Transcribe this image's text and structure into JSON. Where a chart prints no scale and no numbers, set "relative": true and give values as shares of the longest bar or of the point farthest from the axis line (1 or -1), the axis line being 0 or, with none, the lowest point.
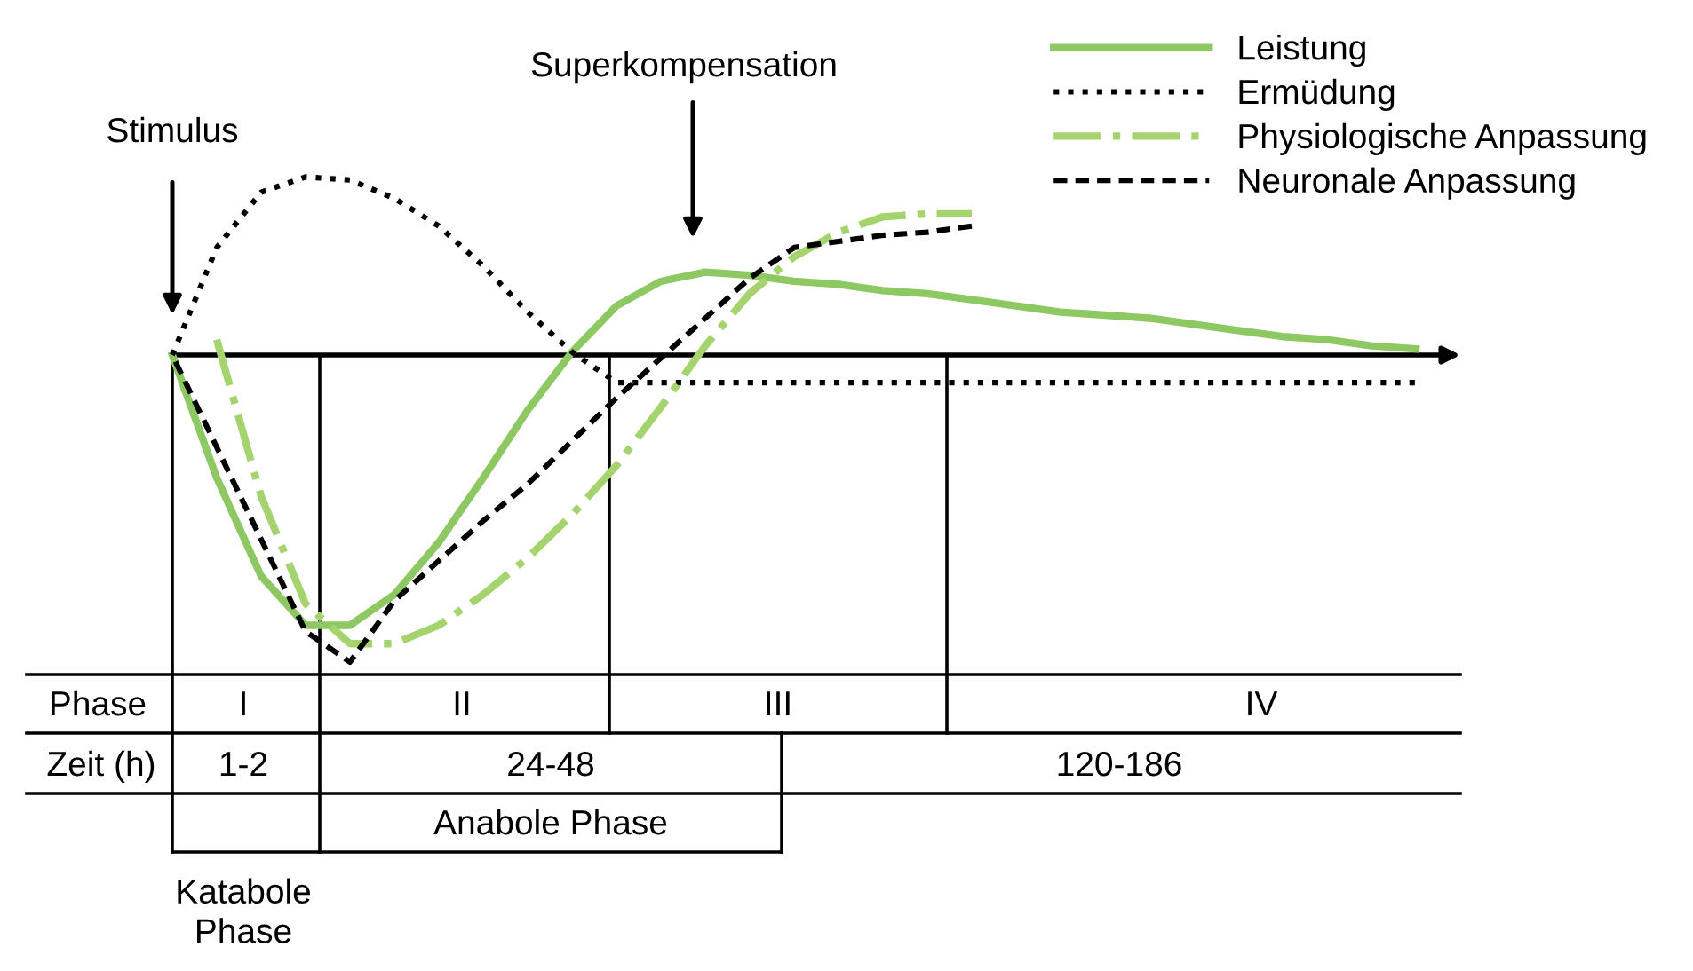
{
  "chart_data": {
    "type": "line",
    "relative": true,
    "legend": "top right",
    "marker": "none",
    "categories": [
      null,
      null,
      null,
      null,
      null,
      null,
      null,
      null,
      null,
      null,
      null,
      null,
      null,
      null,
      null,
      null,
      null,
      null,
      null,
      null,
      null,
      null,
      null,
      null,
      null,
      null,
      null,
      null,
      null
    ],
    "series": [
      {
        "name": "Leistung",
        "color": "#8dc863",
        "line_style": "solid",
        "values": [
          0,
          -0.4,
          -0.72,
          -0.88,
          -0.88,
          -0.78,
          -0.61,
          -0.4,
          -0.18,
          0.01,
          0.16,
          0.24,
          0.27,
          0.26,
          0.24,
          0.23,
          0.21,
          0.2,
          0.18,
          0.16,
          0.14,
          0.13,
          0.12,
          0.1,
          0.08,
          0.06,
          0.05,
          0.03,
          0.02
        ]
      },
      {
        "name": "Ermüdung",
        "color": "#000000",
        "line_style": "dotted",
        "values": [
          0,
          0.35,
          0.53,
          0.58,
          0.57,
          0.51,
          0.42,
          0.29,
          0.14,
          0.01,
          -0.09,
          -0.09,
          -0.09,
          -0.09,
          -0.09,
          -0.09,
          -0.09,
          -0.09,
          -0.09,
          -0.09,
          -0.09,
          -0.09,
          -0.09,
          -0.09,
          -0.09,
          -0.09,
          -0.09,
          -0.09,
          -0.09
        ]
      },
      {
        "name": "Physiologische Anpassung",
        "color": "#a5d46f",
        "line_style": "dashdot",
        "values": [
          null,
          0.05,
          -0.46,
          -0.81,
          -0.94,
          -0.94,
          -0.88,
          -0.78,
          -0.66,
          -0.52,
          -0.36,
          -0.17,
          0.03,
          0.2,
          0.32,
          0.4,
          0.45,
          0.46,
          0.46,
          null,
          null,
          null,
          null,
          null,
          null,
          null,
          null,
          null,
          null
        ]
      },
      {
        "name": "Neuronale Anpassung",
        "color": "#000000",
        "line_style": "dashed",
        "values": [
          0,
          -0.3,
          -0.6,
          -0.9,
          -1.0,
          -0.8,
          -0.67,
          -0.54,
          -0.42,
          -0.28,
          -0.14,
          -0.01,
          0.12,
          0.25,
          0.35,
          0.37,
          0.39,
          0.4,
          0.42,
          null,
          null,
          null,
          null,
          null,
          null,
          null,
          null,
          null,
          null
        ]
      }
    ],
    "annotations": [
      "Stimulus",
      "Superkompensation",
      "Phase",
      "I",
      "II",
      "III",
      "IV",
      "Zeit (h)",
      "1-2",
      "24-48",
      "120-186",
      "Anabole Phase",
      "Katabole\nPhase"
    ]
  }
}
